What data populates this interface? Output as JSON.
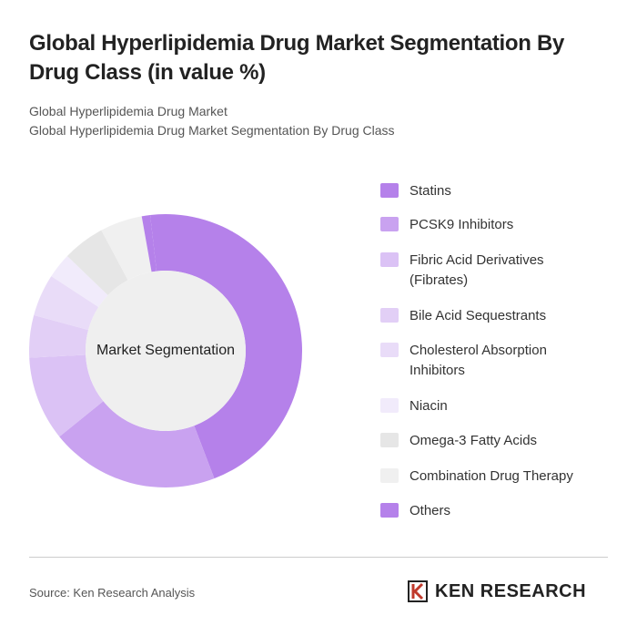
{
  "chart_data": {
    "type": "donut",
    "title": "Global Hyperlipidemia Drug Market Segmentation By Drug Class (in value %)",
    "subtitle": [
      "Global Hyperlipidemia Drug Market",
      "Global Hyperlipidemia Drug Market Segmentation By Drug Class"
    ],
    "center_label": "Market Segmentation",
    "categories": [
      "Statins",
      "PCSK9 Inhibitors",
      "Fibric Acid Derivatives (Fibrates)",
      "Bile Acid Sequestrants",
      "Cholesterol Absorption Inhibitors",
      "Niacin",
      "Omega-3 Fatty Acids",
      "Combination Drug Therapy",
      "Others"
    ],
    "values": [
      46,
      20,
      10,
      5,
      5,
      3,
      5,
      5,
      1
    ],
    "colors": [
      "#b581ea",
      "#c9a2f0",
      "#dbc2f5",
      "#e2cff6",
      "#e9dcf8",
      "#f1ebfb",
      "#e6e6e6",
      "#f0f0f0",
      "#b581ea"
    ],
    "source": "Source: Ken Research Analysis",
    "logo": "KEN RESEARCH"
  }
}
